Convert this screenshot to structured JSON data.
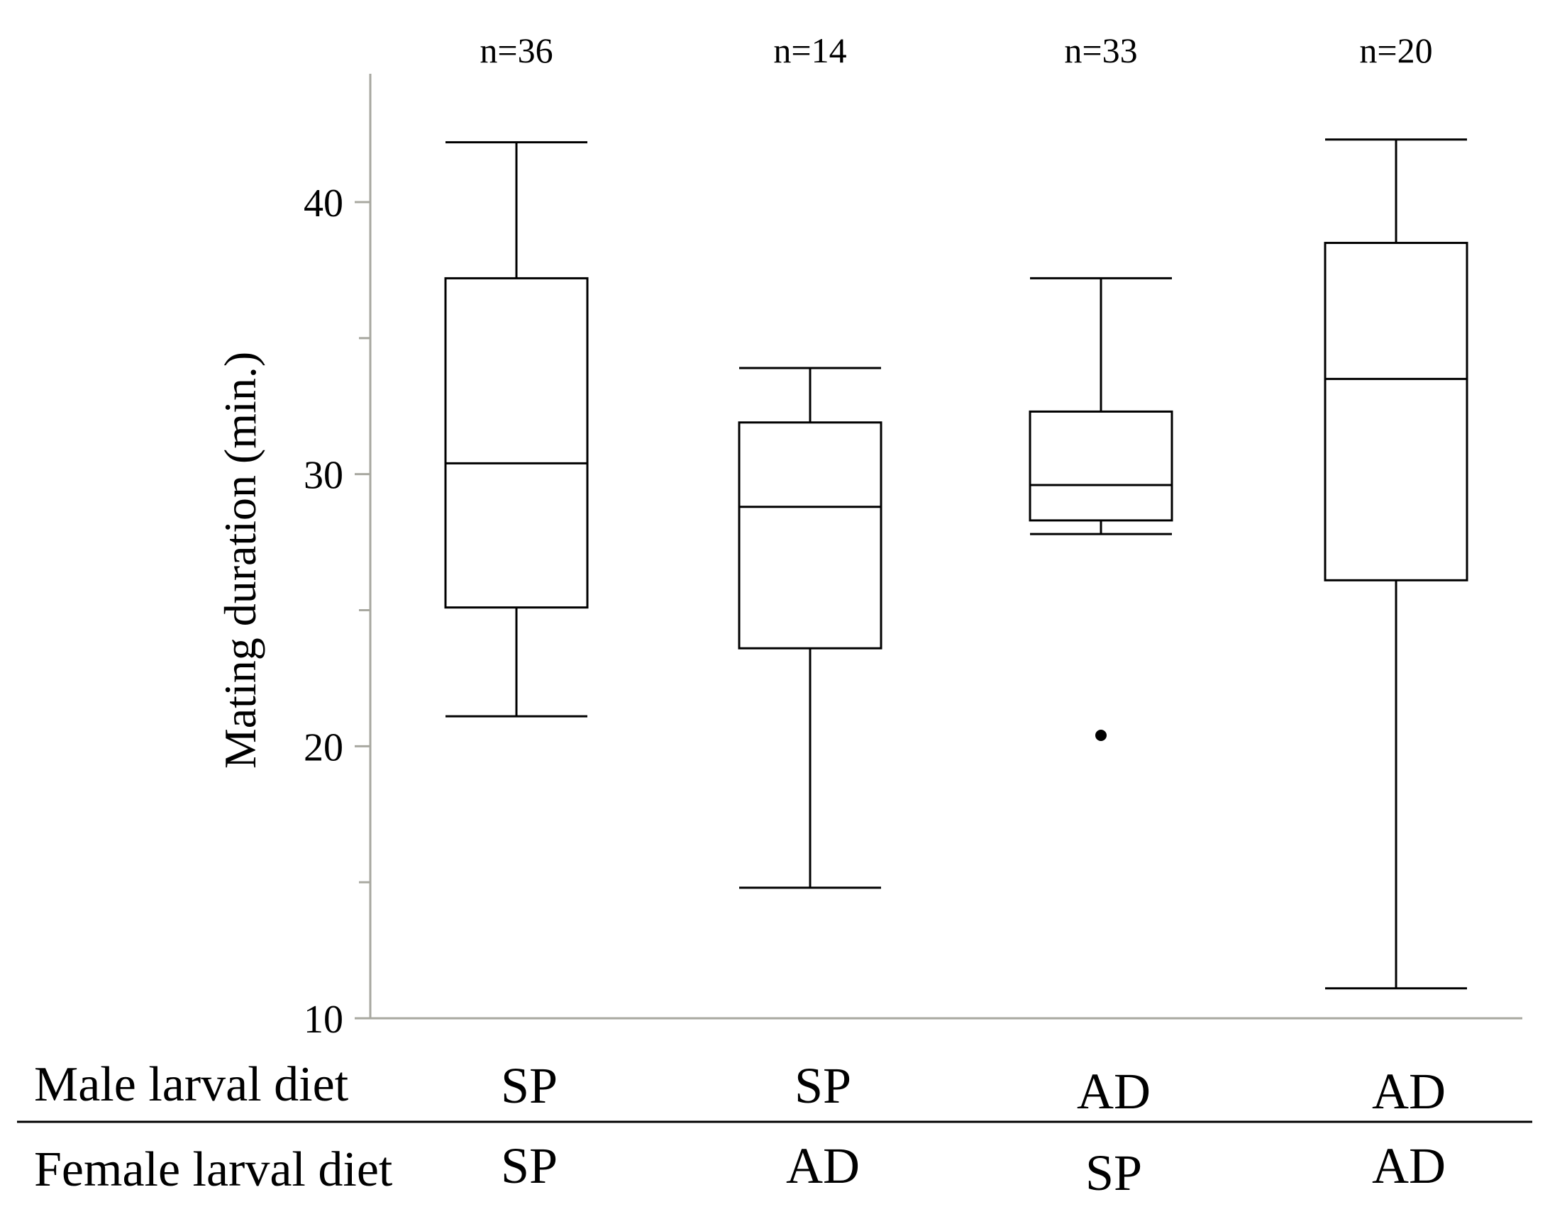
{
  "chart_data": {
    "type": "boxplot",
    "ylabel": "Mating duration (min.)",
    "ylim": [
      10,
      45
    ],
    "y_tick_labels": [
      10,
      20,
      30,
      40
    ],
    "y_minor_ticks": [
      15,
      25,
      35
    ],
    "row_labels": {
      "male": "Male larval diet",
      "female": "Female larval diet"
    },
    "groups": [
      {
        "n_label": "n=36",
        "male": "SP",
        "female": "SP",
        "min": 21.1,
        "q1": 25.1,
        "median": 30.4,
        "q3": 37.2,
        "max": 42.2,
        "outliers": []
      },
      {
        "n_label": "n=14",
        "male": "SP",
        "female": "AD",
        "min": 14.8,
        "q1": 23.6,
        "median": 28.8,
        "q3": 31.9,
        "max": 33.9,
        "outliers": []
      },
      {
        "n_label": "n=33",
        "male": "AD",
        "female": "SP",
        "min": 27.8,
        "q1": 28.3,
        "median": 29.6,
        "q3": 32.3,
        "max": 37.2,
        "outliers": [
          20.4
        ]
      },
      {
        "n_label": "n=20",
        "male": "AD",
        "female": "AD",
        "min": 11.1,
        "q1": 26.1,
        "median": 33.5,
        "q3": 38.5,
        "max": 42.3,
        "outliers": []
      }
    ]
  }
}
